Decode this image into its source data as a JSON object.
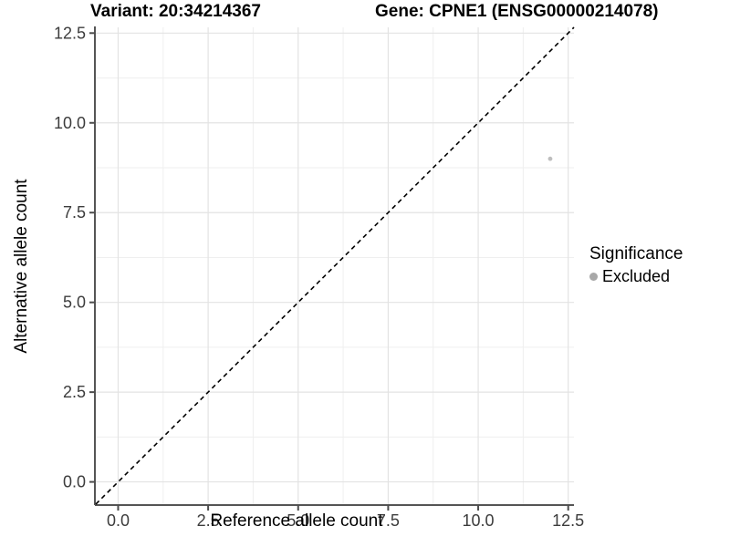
{
  "chart_data": {
    "type": "scatter",
    "title_left": "Variant: 20:34214367",
    "title_right": "Gene: CPNE1 (ENSG00000214078)",
    "xlabel": "Reference allele count",
    "ylabel": "Alternative allele count",
    "xlim": [
      -0.62,
      12.66
    ],
    "ylim": [
      -0.62,
      12.66
    ],
    "major_ticks": [
      0,
      2.5,
      5,
      7.5,
      10,
      12.5
    ],
    "tick_labels": [
      "0.0",
      "2.5",
      "5.0",
      "7.5",
      "10.0",
      "12.5"
    ],
    "minor_ticks": [
      1.25,
      3.75,
      6.25,
      8.75,
      11.25
    ],
    "grid": "major+minor",
    "identity_line": {
      "slope": 1,
      "intercept": 0,
      "style": "dashed",
      "color": "#000000"
    },
    "points": [
      {
        "x": 12,
        "y": 9,
        "group": "Excluded",
        "color": "#bebebe"
      }
    ],
    "legend": {
      "position": "right",
      "title": "Significance",
      "items": [
        {
          "label": "Excluded",
          "color": "#a8a8a8"
        }
      ]
    },
    "colors": {
      "grid_major": "#e3e3e3",
      "grid_minor": "#efefef",
      "axis": "#555555",
      "tick_mark": "#4d4d4d",
      "tick_text": "#3c3c3c",
      "background": "#ffffff"
    }
  }
}
